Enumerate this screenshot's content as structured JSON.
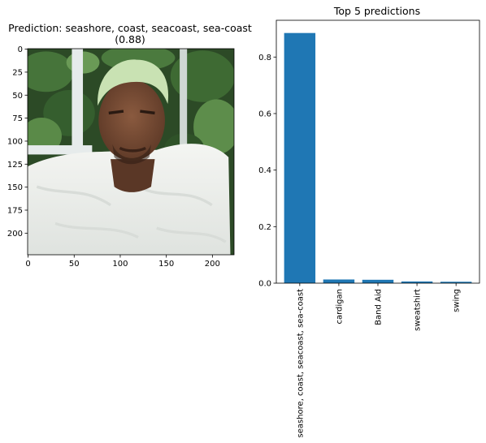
{
  "chart_data": [
    {
      "type": "image",
      "title": "Prediction: seashore, coast, seacoast, sea-coast",
      "title_line2": "(0.88)",
      "x_ticks": [
        0,
        50,
        100,
        150,
        200
      ],
      "y_ticks": [
        0,
        25,
        50,
        75,
        100,
        125,
        150,
        175,
        200
      ],
      "xlim": [
        -0.5,
        223.5
      ],
      "ylim": [
        223.5,
        -0.5
      ],
      "image_content": "photo of a man with bleached green-tinted hair wearing a white knit sweater in front of green foliage and a white window frame",
      "colors": {
        "foliage_dark": "#1f3a1c",
        "foliage": "#3f6b34",
        "frame": "#e8ecec",
        "sweater": "#eef0ec",
        "skin": "#7a4e36",
        "hair": "#c8e0b0"
      }
    },
    {
      "type": "bar",
      "title": "Top 5 predictions",
      "categories": [
        "seashore, coast, seacoast, sea-coast",
        "cardigan",
        "Band Aid",
        "sweatshirt",
        "swing"
      ],
      "values": [
        0.885,
        0.013,
        0.012,
        0.006,
        0.005
      ],
      "y_ticks": [
        0.0,
        0.2,
        0.4,
        0.6,
        0.8
      ],
      "y_tick_labels": [
        "0.0",
        "0.2",
        "0.4",
        "0.6",
        "0.8"
      ],
      "ylim": [
        0,
        0.93
      ],
      "bar_color": "#1f77b4",
      "grid": false,
      "xlabel": "",
      "ylabel": ""
    }
  ]
}
